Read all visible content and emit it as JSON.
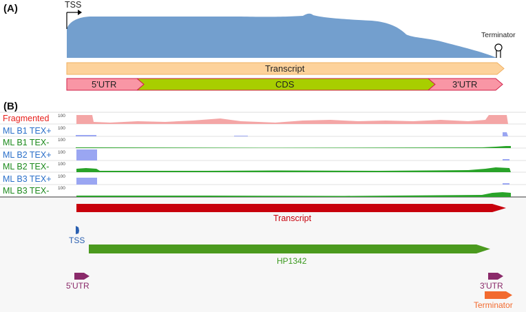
{
  "panel_a": {
    "label": "(A)",
    "tss_label": "TSS",
    "terminator_label": "Terminator",
    "transcript_label": "Transcript",
    "utr5_label": "5'UTR",
    "cds_label": "CDS",
    "utr3_label": "3'UTR",
    "colors": {
      "coverage": "#739fce",
      "transcript": "#fdd29b",
      "utr": "#f996a5",
      "cds": "#a8ce00"
    }
  },
  "panel_b": {
    "label": "(B)",
    "scale_value": "100",
    "tracks": [
      {
        "name": "Fragmented",
        "color": "#e8201c",
        "fill": "#f4a6a6"
      },
      {
        "name": "ML B1 TEX+",
        "color": "#2a6fc9",
        "fill": "#9aa6f2"
      },
      {
        "name": "ML B1 TEX-",
        "color": "#1c8a1c",
        "fill": "#29a329"
      },
      {
        "name": "ML B2 TEX+",
        "color": "#2a6fc9",
        "fill": "#9aa6f2"
      },
      {
        "name": "ML B2 TEX-",
        "color": "#1c8a1c",
        "fill": "#29a329"
      },
      {
        "name": "ML B3 TEX+",
        "color": "#2a6fc9",
        "fill": "#9aa6f2"
      },
      {
        "name": "ML B3 TEX-",
        "color": "#1c8a1c",
        "fill": "#29a329"
      }
    ],
    "features": {
      "transcript": {
        "label": "Transcript",
        "color": "#c8000c",
        "label_color": "#c8000c"
      },
      "tss": {
        "label": "TSS",
        "color": "#2a5fb0",
        "label_color": "#2a5fb0"
      },
      "gene": {
        "label": "HP1342",
        "color": "#4b9a1e",
        "label_color": "#3b9a1e"
      },
      "utr5": {
        "label": "5'UTR",
        "color": "#8a2a6a",
        "label_color": "#8a2a6a"
      },
      "utr3": {
        "label": "3'UTR",
        "color": "#8a2a6a",
        "label_color": "#8a2a6a"
      },
      "terminator": {
        "label": "Terminator",
        "color": "#f26a2e",
        "label_color": "#f26a2e"
      }
    }
  }
}
